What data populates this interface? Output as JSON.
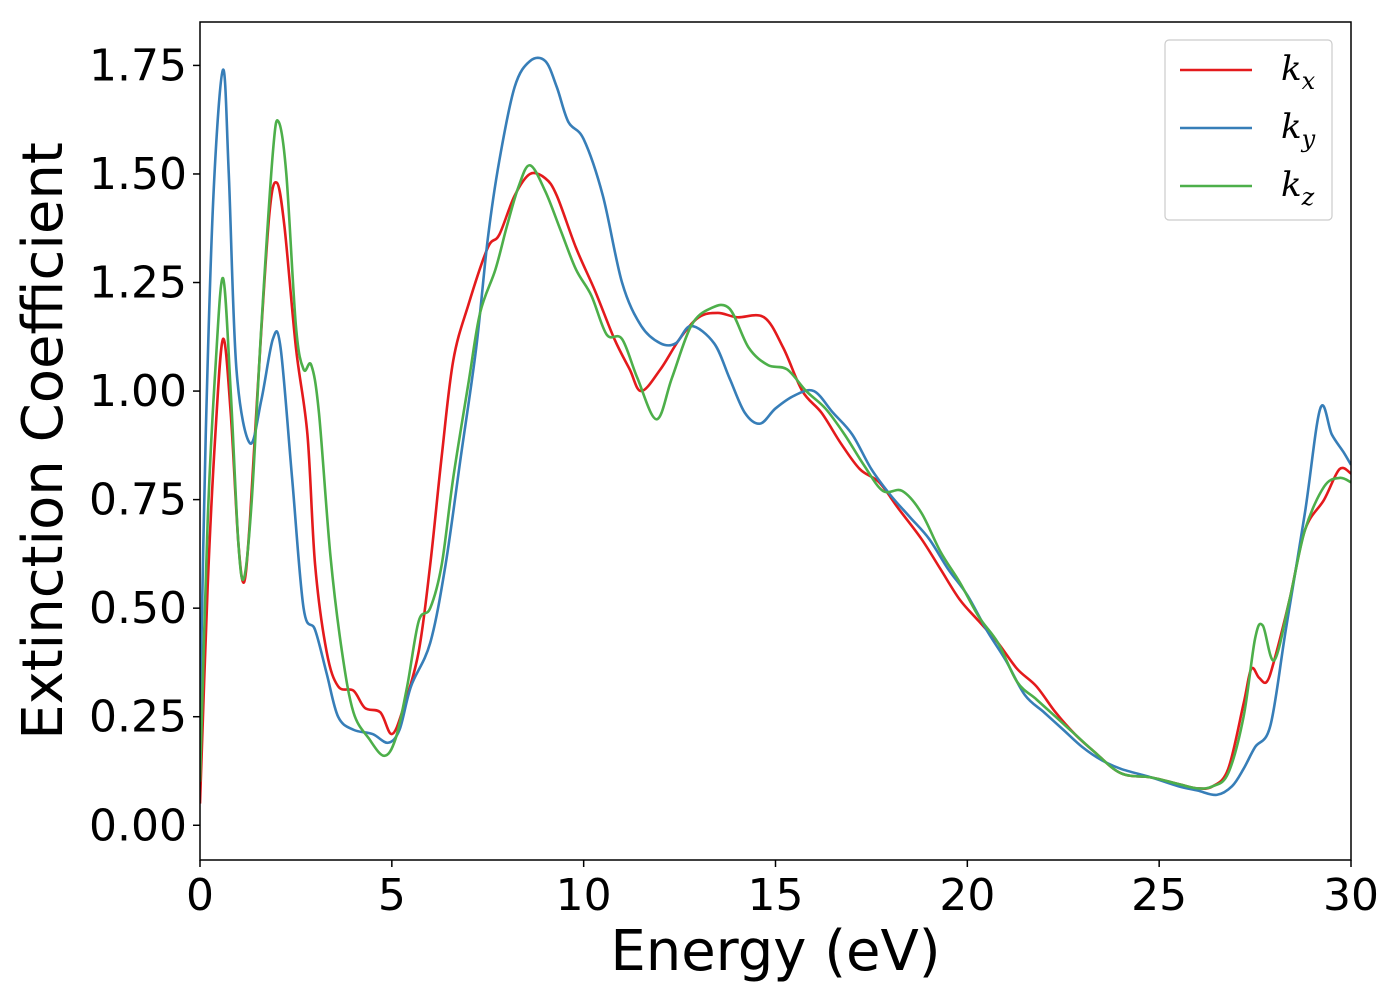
{
  "chart_data": {
    "type": "line",
    "xlabel": "Energy (eV)",
    "ylabel": "Extinction Coefficient",
    "xlim": [
      0,
      30
    ],
    "ylim": [
      -0.08,
      1.85
    ],
    "xticks": [
      "0",
      "5",
      "10",
      "15",
      "20",
      "25",
      "30"
    ],
    "yticks": [
      "0.00",
      "0.25",
      "0.50",
      "0.75",
      "1.00",
      "1.25",
      "1.50",
      "1.75"
    ],
    "grid": false,
    "legend_position": "top-right",
    "series": [
      {
        "name": "k",
        "subscript": "x",
        "color": "#e41a1c",
        "points": [
          [
            0,
            0.05
          ],
          [
            0.2,
            0.55
          ],
          [
            0.4,
            0.9
          ],
          [
            0.6,
            1.12
          ],
          [
            0.8,
            0.95
          ],
          [
            1.0,
            0.65
          ],
          [
            1.15,
            0.56
          ],
          [
            1.3,
            0.7
          ],
          [
            1.5,
            1.0
          ],
          [
            1.8,
            1.4
          ],
          [
            2.0,
            1.48
          ],
          [
            2.2,
            1.38
          ],
          [
            2.5,
            1.1
          ],
          [
            2.8,
            0.9
          ],
          [
            3.0,
            0.6
          ],
          [
            3.3,
            0.4
          ],
          [
            3.6,
            0.32
          ],
          [
            4.0,
            0.31
          ],
          [
            4.3,
            0.27
          ],
          [
            4.7,
            0.26
          ],
          [
            5.0,
            0.21
          ],
          [
            5.3,
            0.27
          ],
          [
            5.7,
            0.4
          ],
          [
            6.0,
            0.6
          ],
          [
            6.3,
            0.85
          ],
          [
            6.6,
            1.07
          ],
          [
            7.0,
            1.2
          ],
          [
            7.5,
            1.33
          ],
          [
            7.8,
            1.36
          ],
          [
            8.2,
            1.45
          ],
          [
            8.6,
            1.5
          ],
          [
            9.0,
            1.49
          ],
          [
            9.3,
            1.45
          ],
          [
            9.8,
            1.33
          ],
          [
            10.3,
            1.23
          ],
          [
            10.8,
            1.12
          ],
          [
            11.2,
            1.05
          ],
          [
            11.5,
            1.0
          ],
          [
            12.0,
            1.05
          ],
          [
            12.5,
            1.12
          ],
          [
            13.0,
            1.17
          ],
          [
            13.5,
            1.18
          ],
          [
            14.0,
            1.17
          ],
          [
            14.7,
            1.17
          ],
          [
            15.2,
            1.1
          ],
          [
            15.7,
            1.0
          ],
          [
            16.2,
            0.95
          ],
          [
            16.7,
            0.88
          ],
          [
            17.2,
            0.82
          ],
          [
            17.7,
            0.79
          ],
          [
            18.2,
            0.73
          ],
          [
            18.8,
            0.66
          ],
          [
            19.3,
            0.59
          ],
          [
            19.8,
            0.52
          ],
          [
            20.3,
            0.47
          ],
          [
            20.8,
            0.42
          ],
          [
            21.3,
            0.36
          ],
          [
            21.8,
            0.32
          ],
          [
            22.3,
            0.26
          ],
          [
            22.8,
            0.21
          ],
          [
            23.3,
            0.17
          ],
          [
            24.0,
            0.12
          ],
          [
            24.8,
            0.11
          ],
          [
            25.5,
            0.095
          ],
          [
            26.0,
            0.085
          ],
          [
            26.4,
            0.09
          ],
          [
            26.8,
            0.13
          ],
          [
            27.2,
            0.28
          ],
          [
            27.4,
            0.36
          ],
          [
            27.6,
            0.34
          ],
          [
            27.8,
            0.33
          ],
          [
            28.0,
            0.38
          ],
          [
            28.4,
            0.52
          ],
          [
            28.8,
            0.68
          ],
          [
            29.3,
            0.75
          ],
          [
            29.7,
            0.82
          ],
          [
            30,
            0.81
          ]
        ]
      },
      {
        "name": "k",
        "subscript": "y",
        "color": "#377eb8",
        "points": [
          [
            0,
            0.25
          ],
          [
            0.15,
            0.9
          ],
          [
            0.35,
            1.45
          ],
          [
            0.6,
            1.74
          ],
          [
            0.75,
            1.5
          ],
          [
            0.95,
            1.05
          ],
          [
            1.3,
            0.88
          ],
          [
            1.6,
            0.98
          ],
          [
            1.9,
            1.12
          ],
          [
            2.1,
            1.1
          ],
          [
            2.4,
            0.8
          ],
          [
            2.7,
            0.5
          ],
          [
            3.0,
            0.45
          ],
          [
            3.3,
            0.35
          ],
          [
            3.6,
            0.25
          ],
          [
            4.0,
            0.22
          ],
          [
            4.5,
            0.21
          ],
          [
            4.9,
            0.19
          ],
          [
            5.2,
            0.22
          ],
          [
            5.5,
            0.32
          ],
          [
            6.0,
            0.42
          ],
          [
            6.4,
            0.6
          ],
          [
            6.8,
            0.85
          ],
          [
            7.2,
            1.1
          ],
          [
            7.5,
            1.35
          ],
          [
            7.8,
            1.53
          ],
          [
            8.2,
            1.7
          ],
          [
            8.6,
            1.76
          ],
          [
            9.0,
            1.76
          ],
          [
            9.3,
            1.7
          ],
          [
            9.6,
            1.62
          ],
          [
            10.0,
            1.58
          ],
          [
            10.5,
            1.45
          ],
          [
            11.0,
            1.25
          ],
          [
            11.5,
            1.15
          ],
          [
            12.0,
            1.11
          ],
          [
            12.4,
            1.11
          ],
          [
            12.8,
            1.15
          ],
          [
            13.4,
            1.11
          ],
          [
            13.8,
            1.03
          ],
          [
            14.2,
            0.95
          ],
          [
            14.6,
            0.925
          ],
          [
            15.0,
            0.96
          ],
          [
            15.5,
            0.99
          ],
          [
            16.0,
            1.0
          ],
          [
            16.5,
            0.95
          ],
          [
            17.0,
            0.9
          ],
          [
            17.5,
            0.82
          ],
          [
            18.0,
            0.76
          ],
          [
            18.5,
            0.71
          ],
          [
            19.0,
            0.66
          ],
          [
            19.5,
            0.59
          ],
          [
            20.0,
            0.53
          ],
          [
            20.5,
            0.45
          ],
          [
            21.0,
            0.38
          ],
          [
            21.5,
            0.3
          ],
          [
            22.0,
            0.26
          ],
          [
            22.5,
            0.22
          ],
          [
            23.0,
            0.18
          ],
          [
            23.5,
            0.15
          ],
          [
            24.0,
            0.13
          ],
          [
            24.8,
            0.11
          ],
          [
            25.5,
            0.09
          ],
          [
            26.0,
            0.08
          ],
          [
            26.5,
            0.07
          ],
          [
            26.9,
            0.09
          ],
          [
            27.2,
            0.13
          ],
          [
            27.5,
            0.18
          ],
          [
            27.9,
            0.23
          ],
          [
            28.3,
            0.45
          ],
          [
            28.8,
            0.72
          ],
          [
            29.2,
            0.96
          ],
          [
            29.5,
            0.9
          ],
          [
            29.8,
            0.86
          ],
          [
            30,
            0.83
          ]
        ]
      },
      {
        "name": "k",
        "subscript": "z",
        "color": "#4daf4a",
        "points": [
          [
            0,
            0.1
          ],
          [
            0.2,
            0.7
          ],
          [
            0.4,
            1.05
          ],
          [
            0.6,
            1.26
          ],
          [
            0.8,
            1.0
          ],
          [
            1.0,
            0.65
          ],
          [
            1.15,
            0.57
          ],
          [
            1.35,
            0.75
          ],
          [
            1.6,
            1.15
          ],
          [
            1.9,
            1.55
          ],
          [
            2.05,
            1.62
          ],
          [
            2.25,
            1.5
          ],
          [
            2.5,
            1.15
          ],
          [
            2.7,
            1.05
          ],
          [
            2.9,
            1.06
          ],
          [
            3.1,
            0.95
          ],
          [
            3.4,
            0.62
          ],
          [
            3.7,
            0.4
          ],
          [
            4.0,
            0.26
          ],
          [
            4.4,
            0.2
          ],
          [
            4.8,
            0.16
          ],
          [
            5.1,
            0.2
          ],
          [
            5.4,
            0.32
          ],
          [
            5.7,
            0.47
          ],
          [
            6.0,
            0.5
          ],
          [
            6.3,
            0.6
          ],
          [
            6.6,
            0.8
          ],
          [
            7.0,
            1.02
          ],
          [
            7.3,
            1.18
          ],
          [
            7.7,
            1.28
          ],
          [
            8.0,
            1.38
          ],
          [
            8.3,
            1.47
          ],
          [
            8.6,
            1.52
          ],
          [
            9.0,
            1.46
          ],
          [
            9.4,
            1.37
          ],
          [
            9.8,
            1.28
          ],
          [
            10.2,
            1.22
          ],
          [
            10.6,
            1.13
          ],
          [
            11.0,
            1.12
          ],
          [
            11.4,
            1.03
          ],
          [
            11.9,
            0.935
          ],
          [
            12.3,
            1.03
          ],
          [
            12.8,
            1.15
          ],
          [
            13.3,
            1.19
          ],
          [
            13.8,
            1.19
          ],
          [
            14.3,
            1.1
          ],
          [
            14.8,
            1.06
          ],
          [
            15.3,
            1.05
          ],
          [
            15.8,
            1.0
          ],
          [
            16.3,
            0.96
          ],
          [
            16.8,
            0.9
          ],
          [
            17.3,
            0.83
          ],
          [
            17.8,
            0.77
          ],
          [
            18.3,
            0.77
          ],
          [
            18.8,
            0.72
          ],
          [
            19.3,
            0.63
          ],
          [
            19.8,
            0.56
          ],
          [
            20.3,
            0.48
          ],
          [
            20.8,
            0.42
          ],
          [
            21.3,
            0.33
          ],
          [
            21.8,
            0.29
          ],
          [
            22.3,
            0.25
          ],
          [
            22.8,
            0.21
          ],
          [
            23.3,
            0.17
          ],
          [
            24.0,
            0.12
          ],
          [
            24.8,
            0.11
          ],
          [
            25.5,
            0.095
          ],
          [
            26.0,
            0.085
          ],
          [
            26.4,
            0.09
          ],
          [
            26.8,
            0.12
          ],
          [
            27.2,
            0.25
          ],
          [
            27.5,
            0.43
          ],
          [
            27.7,
            0.46
          ],
          [
            28.0,
            0.38
          ],
          [
            28.4,
            0.52
          ],
          [
            28.8,
            0.68
          ],
          [
            29.3,
            0.78
          ],
          [
            29.7,
            0.8
          ],
          [
            30,
            0.79
          ]
        ]
      }
    ]
  }
}
